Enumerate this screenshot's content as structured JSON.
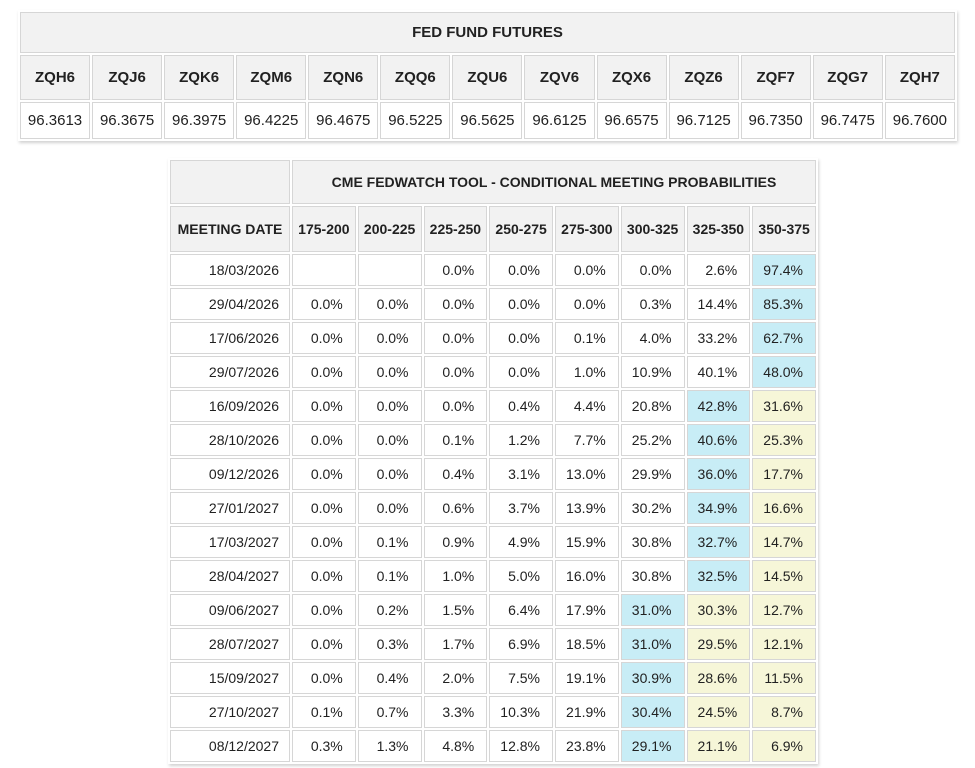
{
  "colors": {
    "header_bg": "#f2f2f2",
    "cell_border": "#d6d6d6",
    "text": "#212121",
    "highlight_blue": "#c8edf6",
    "highlight_yellow": "#f6f6d8"
  },
  "chart_data": [
    {
      "type": "table",
      "name": "fed_fund_futures",
      "title": "FED FUND FUTURES",
      "columns": [
        "ZQH6",
        "ZQJ6",
        "ZQK6",
        "ZQM6",
        "ZQN6",
        "ZQQ6",
        "ZQU6",
        "ZQV6",
        "ZQX6",
        "ZQZ6",
        "ZQF7",
        "ZQG7",
        "ZQH7"
      ],
      "rows": [
        [
          "96.3613",
          "96.3675",
          "96.3975",
          "96.4225",
          "96.4675",
          "96.5225",
          "96.5625",
          "96.6125",
          "96.6575",
          "96.7125",
          "96.7350",
          "96.7475",
          "96.7600"
        ]
      ]
    },
    {
      "type": "table",
      "name": "cme_fedwatch_conditional_meeting_probabilities",
      "title": "CME FEDWATCH TOOL - CONDITIONAL MEETING PROBABILITIES",
      "columns": [
        "MEETING DATE",
        "175-200",
        "200-225",
        "225-250",
        "250-275",
        "275-300",
        "300-325",
        "325-350",
        "350-375"
      ],
      "rows": [
        [
          "18/03/2026",
          "",
          "",
          "0.0%",
          "0.0%",
          "0.0%",
          "0.0%",
          "2.6%",
          "97.4%"
        ],
        [
          "29/04/2026",
          "0.0%",
          "0.0%",
          "0.0%",
          "0.0%",
          "0.0%",
          "0.3%",
          "14.4%",
          "85.3%"
        ],
        [
          "17/06/2026",
          "0.0%",
          "0.0%",
          "0.0%",
          "0.0%",
          "0.1%",
          "4.0%",
          "33.2%",
          "62.7%"
        ],
        [
          "29/07/2026",
          "0.0%",
          "0.0%",
          "0.0%",
          "0.0%",
          "1.0%",
          "10.9%",
          "40.1%",
          "48.0%"
        ],
        [
          "16/09/2026",
          "0.0%",
          "0.0%",
          "0.0%",
          "0.4%",
          "4.4%",
          "20.8%",
          "42.8%",
          "31.6%"
        ],
        [
          "28/10/2026",
          "0.0%",
          "0.0%",
          "0.1%",
          "1.2%",
          "7.7%",
          "25.2%",
          "40.6%",
          "25.3%"
        ],
        [
          "09/12/2026",
          "0.0%",
          "0.0%",
          "0.4%",
          "3.1%",
          "13.0%",
          "29.9%",
          "36.0%",
          "17.7%"
        ],
        [
          "27/01/2027",
          "0.0%",
          "0.0%",
          "0.6%",
          "3.7%",
          "13.9%",
          "30.2%",
          "34.9%",
          "16.6%"
        ],
        [
          "17/03/2027",
          "0.0%",
          "0.1%",
          "0.9%",
          "4.9%",
          "15.9%",
          "30.8%",
          "32.7%",
          "14.7%"
        ],
        [
          "28/04/2027",
          "0.0%",
          "0.1%",
          "1.0%",
          "5.0%",
          "16.0%",
          "30.8%",
          "32.5%",
          "14.5%"
        ],
        [
          "09/06/2027",
          "0.0%",
          "0.2%",
          "1.5%",
          "6.4%",
          "17.9%",
          "31.0%",
          "30.3%",
          "12.7%"
        ],
        [
          "28/07/2027",
          "0.0%",
          "0.3%",
          "1.7%",
          "6.9%",
          "18.5%",
          "31.0%",
          "29.5%",
          "12.1%"
        ],
        [
          "15/09/2027",
          "0.0%",
          "0.4%",
          "2.0%",
          "7.5%",
          "19.1%",
          "30.9%",
          "28.6%",
          "11.5%"
        ],
        [
          "27/10/2027",
          "0.1%",
          "0.7%",
          "3.3%",
          "10.3%",
          "21.9%",
          "30.4%",
          "24.5%",
          "8.7%"
        ],
        [
          "08/12/2027",
          "0.3%",
          "1.3%",
          "4.8%",
          "12.8%",
          "23.8%",
          "29.1%",
          "21.1%",
          "6.9%"
        ]
      ],
      "highlights": [
        [
          "",
          "",
          "",
          "",
          "",
          "",
          "",
          "b"
        ],
        [
          "",
          "",
          "",
          "",
          "",
          "",
          "",
          "b"
        ],
        [
          "",
          "",
          "",
          "",
          "",
          "",
          "",
          "b"
        ],
        [
          "",
          "",
          "",
          "",
          "",
          "",
          "",
          "b"
        ],
        [
          "",
          "",
          "",
          "",
          "",
          "",
          "b",
          "y"
        ],
        [
          "",
          "",
          "",
          "",
          "",
          "",
          "b",
          "y"
        ],
        [
          "",
          "",
          "",
          "",
          "",
          "",
          "b",
          "y"
        ],
        [
          "",
          "",
          "",
          "",
          "",
          "",
          "b",
          "y"
        ],
        [
          "",
          "",
          "",
          "",
          "",
          "",
          "b",
          "y"
        ],
        [
          "",
          "",
          "",
          "",
          "",
          "",
          "b",
          "y"
        ],
        [
          "",
          "",
          "",
          "",
          "",
          "b",
          "y",
          "y"
        ],
        [
          "",
          "",
          "",
          "",
          "",
          "b",
          "y",
          "y"
        ],
        [
          "",
          "",
          "",
          "",
          "",
          "b",
          "y",
          "y"
        ],
        [
          "",
          "",
          "",
          "",
          "",
          "b",
          "y",
          "y"
        ],
        [
          "",
          "",
          "",
          "",
          "",
          "b",
          "y",
          "y"
        ]
      ]
    }
  ]
}
